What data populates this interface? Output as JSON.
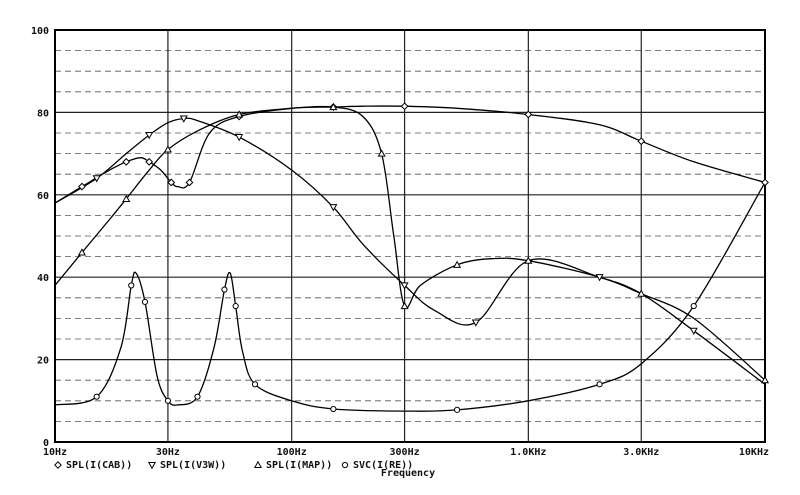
{
  "chart_data": {
    "type": "line",
    "title": "",
    "xlabel": "Frequency",
    "ylabel": "",
    "x_scale": "log",
    "xlim": [
      10,
      10000
    ],
    "ylim": [
      0,
      100
    ],
    "grid": true,
    "x_tick_values": [
      10,
      30,
      100,
      300,
      1000,
      3000,
      10000
    ],
    "x_tick_labels": [
      "10Hz",
      "30Hz",
      "100Hz",
      "300Hz",
      "1.0KHz",
      "3.0KHz",
      "10KHz"
    ],
    "y_ticks": [
      0,
      20,
      40,
      60,
      80,
      100
    ],
    "legend_position": "bottom",
    "series": [
      {
        "name": "SPL(I(CAB))",
        "marker": "diamond",
        "x": [
          10,
          13,
          17,
          20,
          23,
          25,
          28,
          31,
          33,
          37,
          45,
          60,
          100,
          150,
          200,
          300,
          500,
          1000,
          2000,
          3000,
          5000,
          10000
        ],
        "y": [
          58,
          62,
          66,
          68,
          69,
          68,
          66,
          63,
          62,
          63,
          75,
          79,
          81,
          81.3,
          81.5,
          81.5,
          81,
          79.5,
          77,
          73,
          68,
          63
        ]
      },
      {
        "name": "SPL(I(V3W))",
        "marker": "triangle-down",
        "x": [
          10,
          15,
          20,
          25,
          30,
          35,
          40,
          60,
          100,
          150,
          200,
          300,
          400,
          600,
          1000,
          2000,
          3000,
          5000,
          10000
        ],
        "y": [
          58,
          64,
          70,
          74.5,
          77.5,
          78.5,
          78,
          74,
          66,
          57,
          48,
          38,
          32,
          29,
          44,
          40,
          36,
          27,
          14
        ]
      },
      {
        "name": "SPL(I(MAP))",
        "marker": "triangle-up",
        "x": [
          10,
          13,
          17,
          20,
          25,
          30,
          40,
          60,
          100,
          150,
          200,
          240,
          270,
          300,
          350,
          500,
          700,
          1000,
          2000,
          3000,
          5000,
          10000
        ],
        "y": [
          38,
          46,
          54,
          59,
          66,
          71,
          75.5,
          79.5,
          81,
          81.3,
          79,
          70,
          50,
          33,
          38,
          43,
          44.5,
          44,
          40,
          36,
          30,
          15
        ]
      },
      {
        "name": "SVC(I(RE))",
        "marker": "circle",
        "x": [
          10,
          15,
          19,
          21,
          22,
          24,
          27,
          30,
          33,
          40,
          47,
          52,
          55,
          58,
          62,
          70,
          100,
          150,
          300,
          500,
          1000,
          2000,
          3000,
          5000,
          10000
        ],
        "y": [
          9,
          11,
          23,
          38,
          41,
          34,
          16,
          10,
          9,
          11,
          23,
          37,
          41,
          33,
          22,
          14,
          10,
          8,
          7.5,
          7.8,
          10,
          14,
          19,
          33,
          63
        ]
      }
    ]
  }
}
